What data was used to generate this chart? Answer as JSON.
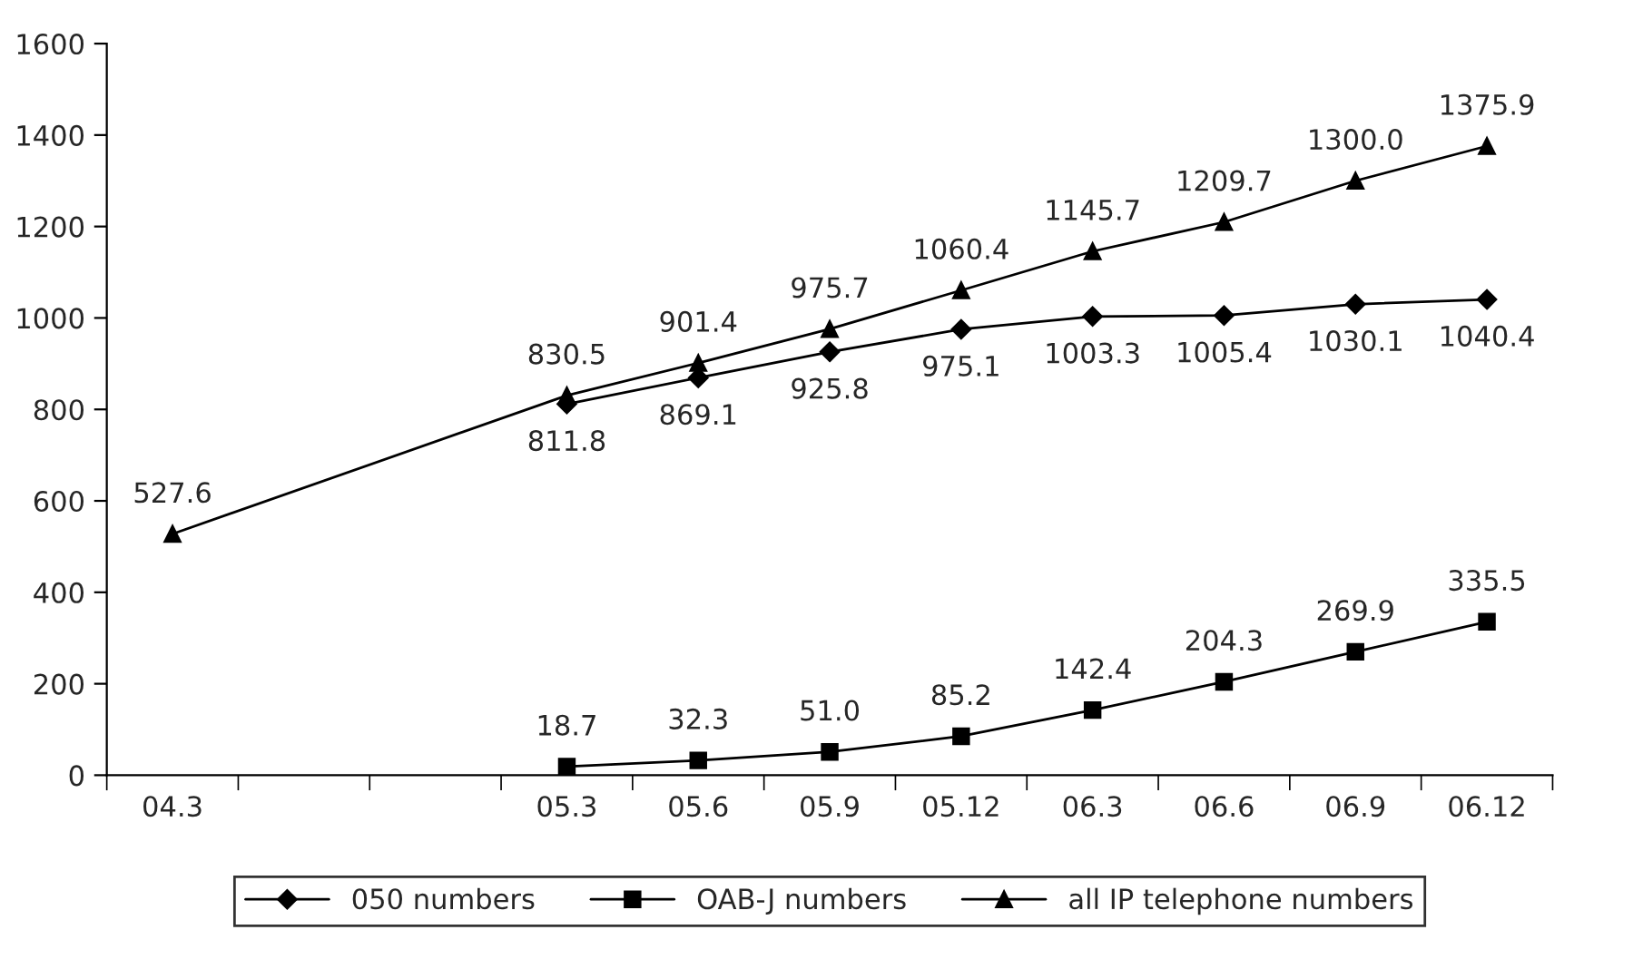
{
  "chart_data": {
    "type": "line",
    "categories": [
      "04.3",
      null,
      null,
      "05.3",
      "05.6",
      "05.9",
      "05.12",
      "06.3",
      "06.6",
      "06.9",
      "06.12"
    ],
    "series": [
      {
        "name": "050 numbers",
        "color": "#000000",
        "marker": "diamond",
        "values": [
          null,
          null,
          null,
          811.8,
          869.1,
          925.8,
          975.1,
          1003.3,
          1005.4,
          1030.1,
          1040.4
        ],
        "value_labels": [
          null,
          null,
          null,
          "811.8",
          "869.1",
          "925.8",
          "975.1",
          "1003.3",
          "1005.4",
          "1030.1",
          "1040.4"
        ]
      },
      {
        "name": "OAB-J numbers",
        "color": "#000000",
        "marker": "square",
        "values": [
          null,
          null,
          null,
          18.7,
          32.3,
          51.0,
          85.2,
          142.4,
          204.3,
          269.9,
          335.5
        ],
        "value_labels": [
          null,
          null,
          null,
          "18.7",
          "32.3",
          "51.0",
          "85.2",
          "142.4",
          "204.3",
          "269.9",
          "335.5"
        ]
      },
      {
        "name": "all IP telephone numbers",
        "color": "#000000",
        "marker": "triangle",
        "values": [
          527.6,
          null,
          null,
          830.5,
          901.4,
          975.7,
          1060.4,
          1145.7,
          1209.7,
          1300.0,
          1375.9
        ],
        "value_labels": [
          "527.6",
          null,
          null,
          "830.5",
          "901.4",
          "975.7",
          "1060.4",
          "1145.7",
          "1209.7",
          "1300.0",
          "1375.9"
        ]
      }
    ],
    "ylim": [
      0,
      1600
    ],
    "yticks": [
      0,
      200,
      400,
      600,
      800,
      1000,
      1200,
      1400,
      1600
    ],
    "grid": false,
    "legend": "bottom",
    "line_style": "solid"
  }
}
